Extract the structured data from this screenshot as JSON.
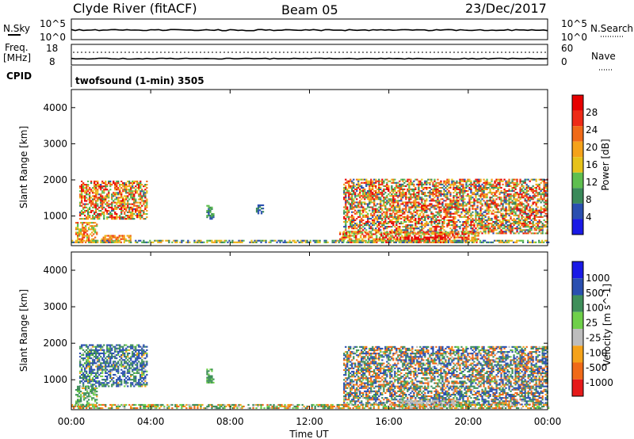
{
  "header": {
    "station": "Clyde River (fitACF)",
    "beam": "Beam 05",
    "date": "23/Dec/2017"
  },
  "top_panels": {
    "nsky_label": "N.Sky",
    "nsky_ticks": [
      "10^5",
      "10^0"
    ],
    "nsearch_label": "N.Search",
    "nsearch_ticks": [
      "10^5",
      "10^0"
    ],
    "freq_label_1": "Freq.",
    "freq_label_2": "[MHz]",
    "freq_ticks": [
      "18",
      "8"
    ],
    "nave_label": "Nave",
    "nave_ticks": [
      "60",
      "0"
    ],
    "cpid_label": "CPID",
    "cpid_text": "twofsound (1-min) 3505"
  },
  "colors": {
    "axis": "#000000",
    "power_scale": [
      "#1a1ae6",
      "#2a4fb0",
      "#3a8a5a",
      "#5fbf4f",
      "#e6c21a",
      "#f5a21a",
      "#f06a18",
      "#ee2b17",
      "#e60000"
    ],
    "velocity_scale": [
      "#e61a1a",
      "#f06a18",
      "#f5a21a",
      "#bdbdbd",
      "#6fd04a",
      "#3f8f5a",
      "#2a4fb0",
      "#1a1ae6"
    ]
  },
  "chart_data": [
    {
      "type": "heatmap",
      "title": "",
      "ylabel": "Slant Range [km]",
      "xlabel": "",
      "x_ticks": [
        "00:00",
        "04:00",
        "08:00",
        "12:00",
        "16:00",
        "20:00",
        "00:00"
      ],
      "y_ticks": [
        "1000",
        "2000",
        "3000",
        "4000"
      ],
      "ylim": [
        180,
        4500
      ],
      "xlim_hours": [
        0,
        24
      ],
      "colorbar": {
        "label": "Power [dB]",
        "ticks": [
          "4",
          "8",
          "12",
          "16",
          "20",
          "24",
          "28"
        ],
        "range": [
          0,
          30
        ]
      },
      "regions": [
        {
          "t0": 0.4,
          "t1": 3.8,
          "r0": 900,
          "r1": 1950,
          "value_min": 6,
          "value_max": 30
        },
        {
          "t0": 0.2,
          "t1": 1.3,
          "r0": 250,
          "r1": 800,
          "value_min": 10,
          "value_max": 26
        },
        {
          "t0": 1.5,
          "t1": 3.0,
          "r0": 250,
          "r1": 450,
          "value_min": 14,
          "value_max": 26
        },
        {
          "t0": 6.8,
          "t1": 7.2,
          "r0": 900,
          "r1": 1300,
          "value_min": 4,
          "value_max": 12
        },
        {
          "t0": 9.3,
          "t1": 9.7,
          "r0": 1050,
          "r1": 1300,
          "value_min": 4,
          "value_max": 10
        },
        {
          "t0": 13.7,
          "t1": 24.0,
          "r0": 500,
          "r1": 2000,
          "value_min": 4,
          "value_max": 30
        },
        {
          "t0": 13.5,
          "t1": 20.5,
          "r0": 250,
          "r1": 550,
          "value_min": 10,
          "value_max": 30
        },
        {
          "t0": 16.8,
          "t1": 18.8,
          "r0": 250,
          "r1": 400,
          "value_min": 26,
          "value_max": 30
        },
        {
          "t0": 0.0,
          "t1": 24.0,
          "r0": 250,
          "r1": 330,
          "value_min": 4,
          "value_max": 20
        }
      ]
    },
    {
      "type": "heatmap",
      "title": "",
      "ylabel": "Slant Range [km]",
      "xlabel": "Time UT",
      "x_ticks": [
        "00:00",
        "04:00",
        "08:00",
        "12:00",
        "16:00",
        "20:00",
        "00:00"
      ],
      "y_ticks": [
        "1000",
        "2000",
        "3000",
        "4000"
      ],
      "ylim": [
        180,
        4500
      ],
      "xlim_hours": [
        0,
        24
      ],
      "colorbar": {
        "label": "Velocity [m s^-1]",
        "ticks": [
          "1000",
          "500",
          "100",
          "25",
          "-25",
          "-100",
          "-500",
          "-1000"
        ],
        "range": [
          -1000,
          1000
        ]
      },
      "regions": [
        {
          "t0": 0.4,
          "t1": 3.8,
          "r0": 800,
          "r1": 1950,
          "value_min": -100,
          "value_max": 1000
        },
        {
          "t0": 0.2,
          "t1": 1.3,
          "r0": 250,
          "r1": 800,
          "value_min": -50,
          "value_max": 300
        },
        {
          "t0": 6.8,
          "t1": 7.2,
          "r0": 900,
          "r1": 1300,
          "value_min": 25,
          "value_max": 300
        },
        {
          "t0": 13.7,
          "t1": 24.0,
          "r0": 300,
          "r1": 1900,
          "value_min": -500,
          "value_max": 1000
        },
        {
          "t0": 16.5,
          "t1": 19.5,
          "r0": 180,
          "r1": 450,
          "value_min": -25,
          "value_max": 25
        },
        {
          "t0": 0.0,
          "t1": 24.0,
          "r0": 200,
          "r1": 330,
          "value_min": -200,
          "value_max": 200
        }
      ]
    }
  ]
}
